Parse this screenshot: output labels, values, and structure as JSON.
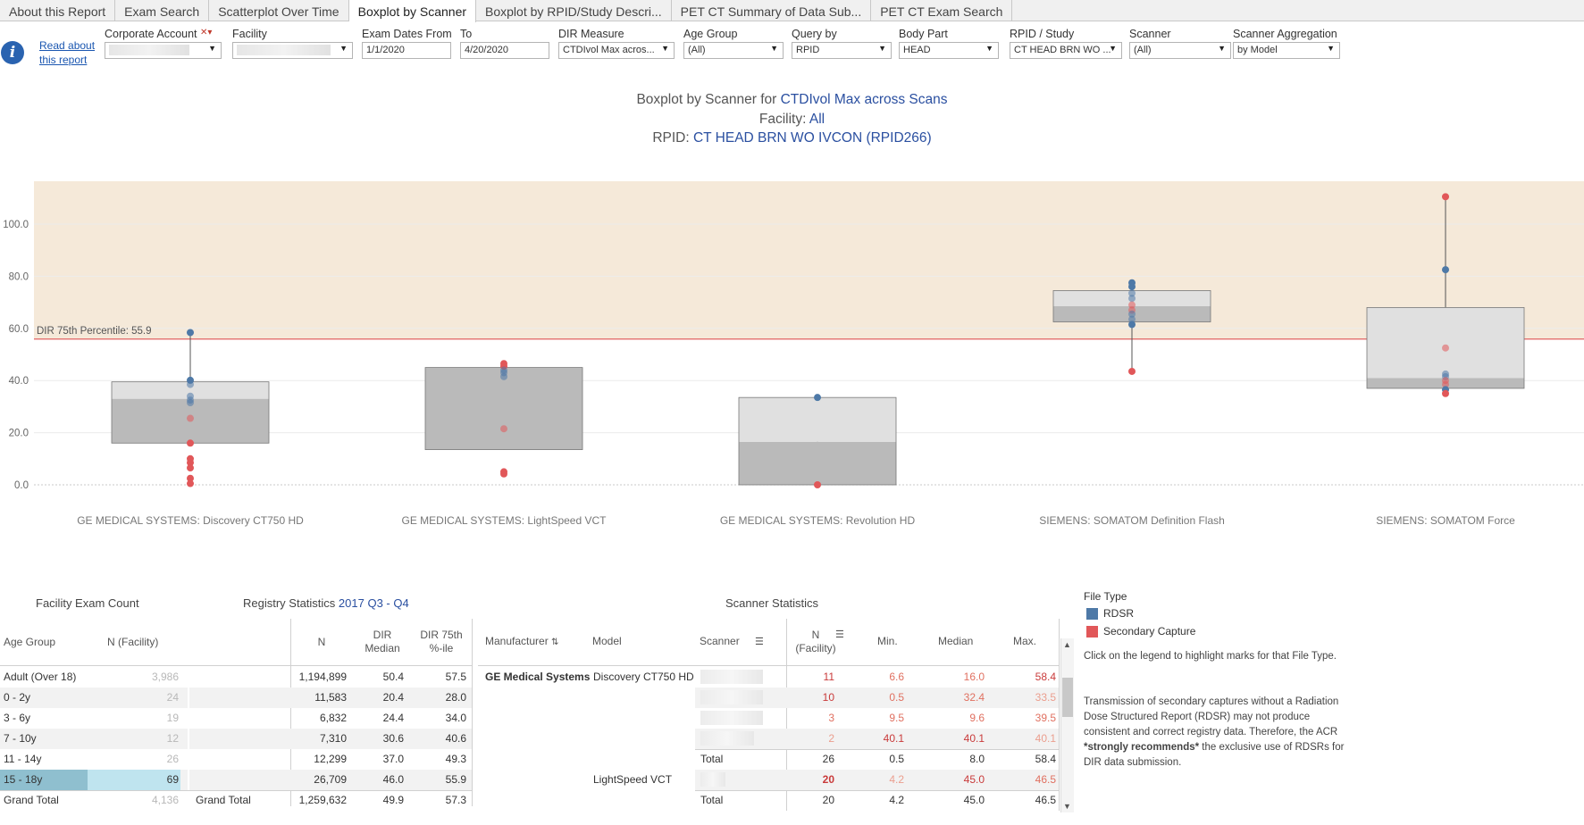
{
  "tabs": [
    {
      "label": "About this Report"
    },
    {
      "label": "Exam Search"
    },
    {
      "label": "Scatterplot Over Time"
    },
    {
      "label": "Boxplot by Scanner"
    },
    {
      "label": "Boxplot by RPID/Study Descri..."
    },
    {
      "label": "PET CT Summary of Data Sub..."
    },
    {
      "label": "PET CT Exam Search"
    }
  ],
  "read_about": "Read about this report",
  "filters": {
    "corporate_account": {
      "label": "Corporate Account",
      "value": ""
    },
    "facility": {
      "label": "Facility",
      "value": ""
    },
    "exam_dates_from": {
      "label": "Exam Dates From",
      "value": "1/1/2020"
    },
    "to": {
      "label": "To",
      "value": "4/20/2020"
    },
    "dir_measure": {
      "label": "DIR Measure",
      "value": "CTDIvol Max acros..."
    },
    "age_group": {
      "label": "Age Group",
      "value": "(All)"
    },
    "query_by": {
      "label": "Query by",
      "value": "RPID"
    },
    "body_part": {
      "label": "Body Part",
      "value": "HEAD"
    },
    "rpid_study": {
      "label": "RPID / Study",
      "value": "CT HEAD BRN WO ..."
    },
    "scanner": {
      "label": "Scanner",
      "value": "(All)"
    },
    "scanner_aggregation": {
      "label": "Scanner Aggregation",
      "value": "by Model"
    }
  },
  "title": {
    "line1_prefix": "Boxplot by Scanner for ",
    "line1_value": "CTDIvol Max across Scans",
    "line2_prefix": "Facility: ",
    "line2_value": "All",
    "line3_prefix": "RPID: ",
    "line3_value": "CT HEAD BRN WO IVCON (RPID266)"
  },
  "colors": {
    "rdsr": "#4e79a7",
    "secondary": "#e15759",
    "band": "#f5e9d9",
    "box_dark": "#bababa",
    "box_light": "#e0e0e0",
    "ref_line": "#e06060",
    "highlight_dark": "#8fbfcf",
    "highlight_light": "#bfe4ef"
  },
  "chart_data": {
    "type": "boxplot",
    "y_ticks": [
      "0.0",
      "20.0",
      "40.0",
      "60.0",
      "80.0",
      "100.0"
    ],
    "ylim": [
      -6,
      117
    ],
    "band_from": 55.9,
    "reference_line": {
      "label": "DIR 75th Percentile: 55.9",
      "value": 55.9
    },
    "scanners": [
      {
        "label": "GE MEDICAL SYSTEMS: Discovery CT750 HD",
        "min": 16,
        "q1": 16,
        "median": 33,
        "q3": 39.5,
        "max": 59,
        "points": [
          {
            "y": 58.4,
            "type": "rdsr"
          },
          {
            "y": 40.1,
            "type": "rdsr"
          },
          {
            "y": 38.5,
            "type": "rdsr"
          },
          {
            "y": 34,
            "type": "rdsr"
          },
          {
            "y": 32.5,
            "type": "rdsr"
          },
          {
            "y": 31.5,
            "type": "rdsr"
          },
          {
            "y": 25.5,
            "type": "secondary"
          },
          {
            "y": 16,
            "type": "secondary"
          },
          {
            "y": 10,
            "type": "secondary"
          },
          {
            "y": 8.5,
            "type": "secondary"
          },
          {
            "y": 6.5,
            "type": "secondary"
          },
          {
            "y": 2.5,
            "type": "secondary"
          },
          {
            "y": 0.5,
            "type": "secondary"
          }
        ]
      },
      {
        "label": "GE MEDICAL SYSTEMS: LightSpeed VCT",
        "min": 13.5,
        "q1": 13.5,
        "median": 45,
        "q3": 45,
        "max": 46.5,
        "points": [
          {
            "y": 46.5,
            "type": "secondary"
          },
          {
            "y": 45.5,
            "type": "secondary"
          },
          {
            "y": 44,
            "type": "rdsr"
          },
          {
            "y": 43,
            "type": "rdsr"
          },
          {
            "y": 41.5,
            "type": "rdsr"
          },
          {
            "y": 21.5,
            "type": "secondary"
          },
          {
            "y": 5,
            "type": "secondary"
          },
          {
            "y": 4.2,
            "type": "secondary"
          }
        ]
      },
      {
        "label": "GE MEDICAL SYSTEMS: Revolution HD",
        "min": 0,
        "q1": 0,
        "median": 16.5,
        "q3": 33.5,
        "max": 33.5,
        "points": [
          {
            "y": 33.5,
            "type": "rdsr"
          },
          {
            "y": 0,
            "type": "secondary"
          }
        ]
      },
      {
        "label": "SIEMENS: SOMATOM Definition Flash",
        "min": 43.5,
        "q1": 62.5,
        "median": 68.5,
        "q3": 74.5,
        "max": 77.5,
        "points": [
          {
            "y": 77.5,
            "type": "rdsr"
          },
          {
            "y": 76,
            "type": "rdsr"
          },
          {
            "y": 73.5,
            "type": "rdsr"
          },
          {
            "y": 71.5,
            "type": "rdsr"
          },
          {
            "y": 69,
            "type": "secondary"
          },
          {
            "y": 67,
            "type": "secondary"
          },
          {
            "y": 65.5,
            "type": "rdsr"
          },
          {
            "y": 63.5,
            "type": "rdsr"
          },
          {
            "y": 61.5,
            "type": "rdsr"
          },
          {
            "y": 43.5,
            "type": "secondary"
          }
        ]
      },
      {
        "label": "SIEMENS: SOMATOM Force",
        "min": 37,
        "q1": 37,
        "median": 41,
        "q3": 68,
        "max": 110.5,
        "points": [
          {
            "y": 110.5,
            "type": "secondary"
          },
          {
            "y": 82.5,
            "type": "rdsr"
          },
          {
            "y": 52.5,
            "type": "secondary"
          },
          {
            "y": 42.5,
            "type": "rdsr"
          },
          {
            "y": 41.5,
            "type": "rdsr"
          },
          {
            "y": 40,
            "type": "secondary"
          },
          {
            "y": 38.5,
            "type": "secondary"
          },
          {
            "y": 36.5,
            "type": "rdsr"
          },
          {
            "y": 35,
            "type": "secondary"
          }
        ]
      }
    ]
  },
  "facility_exam_count": {
    "title": "Facility Exam Count",
    "col_age_group": "Age Group",
    "col_n": "N (Facility)",
    "rows": [
      {
        "age": "Adult (Over 18)",
        "n": "3,986"
      },
      {
        "age": "0 - 2y",
        "n": "24"
      },
      {
        "age": "3 - 6y",
        "n": "19"
      },
      {
        "age": "7 - 10y",
        "n": "12"
      },
      {
        "age": "11 - 14y",
        "n": "26"
      },
      {
        "age": "15 - 18y",
        "n": "69"
      }
    ],
    "total_label": "Grand Total",
    "total_n": "4,136"
  },
  "registry_statistics": {
    "title_prefix": "Registry Statistics ",
    "title_value": "2017 Q3 - Q4",
    "col_n": "N",
    "col_median_1": "DIR",
    "col_median_2": "Median",
    "col_p75_1": "DIR 75th",
    "col_p75_2": "%-ile",
    "rows": [
      {
        "n": "1,194,899",
        "median": "50.4",
        "p75": "57.5"
      },
      {
        "n": "11,583",
        "median": "20.4",
        "p75": "28.0"
      },
      {
        "n": "6,832",
        "median": "24.4",
        "p75": "34.0"
      },
      {
        "n": "7,310",
        "median": "30.6",
        "p75": "40.6"
      },
      {
        "n": "12,299",
        "median": "37.0",
        "p75": "49.3"
      },
      {
        "n": "26,709",
        "median": "46.0",
        "p75": "55.9"
      }
    ],
    "total_label": "Grand Total",
    "total": {
      "n": "1,259,632",
      "median": "49.9",
      "p75": "57.3"
    }
  },
  "scanner_statistics": {
    "title": "Scanner Statistics",
    "col_manufacturer": "Manufacturer",
    "col_model": "Model",
    "col_scanner": "Scanner",
    "col_n_1": "N",
    "col_n_2": "(Facility)",
    "col_min": "Min.",
    "col_median": "Median",
    "col_max": "Max.",
    "manufacturer": "GE Medical Systems",
    "model_1": "Discovery CT750 HD",
    "model_2": "LightSpeed VCT",
    "total_label": "Total",
    "rows": [
      {
        "n": "11",
        "min": "6.6",
        "median": "16.0",
        "max": "58.4"
      },
      {
        "n": "10",
        "min": "0.5",
        "median": "32.4",
        "max": "33.5"
      },
      {
        "n": "3",
        "min": "9.5",
        "median": "9.6",
        "max": "39.5"
      },
      {
        "n": "2",
        "min": "40.1",
        "median": "40.1",
        "max": "40.1"
      }
    ],
    "total_1": {
      "n": "26",
      "min": "0.5",
      "median": "8.0",
      "max": "58.4"
    },
    "row_2": {
      "n": "20",
      "min": "4.2",
      "median": "45.0",
      "max": "46.5"
    },
    "total_2": {
      "n": "20",
      "min": "4.2",
      "median": "45.0",
      "max": "46.5"
    }
  },
  "legend": {
    "title": "File Type",
    "rdsr": "RDSR",
    "secondary": "Secondary Capture",
    "hint": "Click on the legend to highlight marks for that File Type.",
    "note_1": "Transmission of secondary captures without a Radiation Dose Structured Report (RDSR) may not produce consistent and correct registry data. Therefore, the ACR ",
    "note_bold": "*strongly recommends*",
    "note_2": " the exclusive use of RDSRs for DIR data submission."
  }
}
